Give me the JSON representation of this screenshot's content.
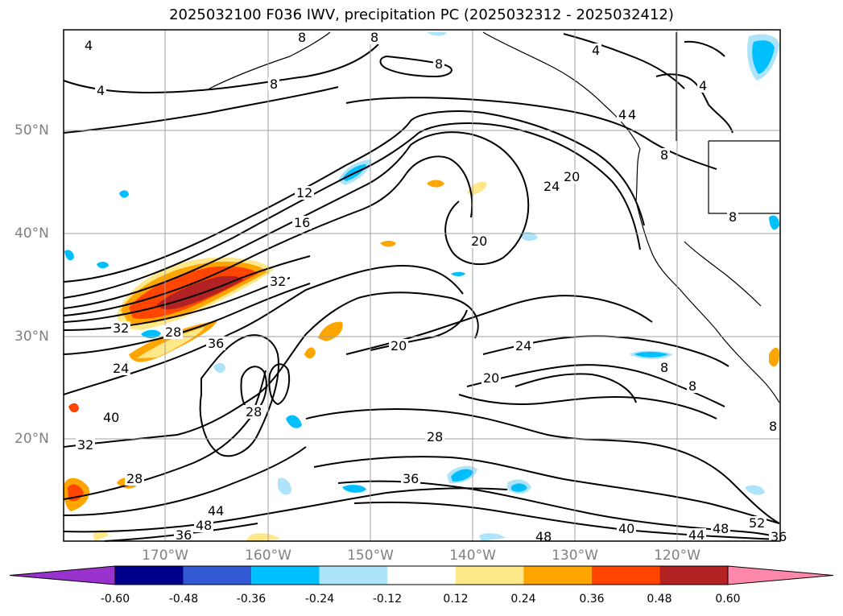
{
  "title": "2025032100 F036 IWV, precipitation PC (2025032312 - 2025032412)",
  "map": {
    "lat_labels": [
      "50°N",
      "40°N",
      "30°N",
      "20°N"
    ],
    "lon_labels": [
      "170°W",
      "160°W",
      "150°W",
      "140°W",
      "130°W",
      "120°W"
    ],
    "extent": {
      "lon_min": -180,
      "lon_max": -110,
      "lat_min": 10,
      "lat_max": 60
    },
    "grid": true,
    "contour_field": "IWV",
    "contour_labels": [
      "4",
      "4",
      "8",
      "8",
      "8",
      "4",
      "4",
      "4",
      "8",
      "12",
      "16",
      "20",
      "24",
      "20",
      "32",
      "32",
      "28",
      "36",
      "24",
      "20",
      "20",
      "24",
      "8",
      "8",
      "8",
      "28",
      "28",
      "36",
      "40",
      "44",
      "48",
      "36",
      "40",
      "48",
      "44",
      "48",
      "52",
      "36",
      "32",
      "28",
      "8",
      "8",
      "4"
    ]
  },
  "colorbar": {
    "ticks": [
      "-0.60",
      "-0.48",
      "-0.36",
      "-0.24",
      "-0.12",
      "0.12",
      "0.24",
      "0.36",
      "0.48",
      "0.60"
    ],
    "colors": [
      "#9932cc",
      "#00008b",
      "#3358d4",
      "#00bfff",
      "#aee4fa",
      "#ffffff",
      "#ffe88a",
      "#ffa500",
      "#ff4500",
      "#b22222",
      "#ff88aa"
    ],
    "extend": "both"
  }
}
